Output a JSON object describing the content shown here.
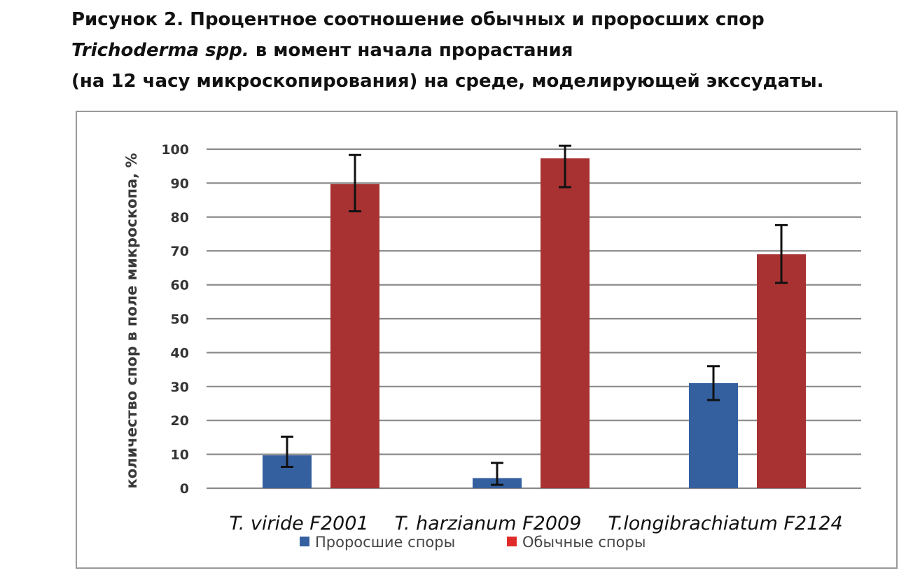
{
  "caption": {
    "line1": "Рисунок 2. Процентное соотношение обычных и проросших спор",
    "line2_italic": "Trichoderma spp.",
    "line2_rest": " в момент начала прорастания",
    "line3": "(на 12 часу микроскопирования) на среде, моделирующей экссудаты."
  },
  "chart_data": {
    "type": "bar",
    "title": "",
    "xlabel": "",
    "ylabel": "количество спор в поле микроскопа, %",
    "ylim": [
      0,
      100
    ],
    "yticks": [
      "0",
      "10",
      "20",
      "30",
      "40",
      "50",
      "60",
      "70",
      "80",
      "90",
      "100"
    ],
    "grid": true,
    "legend_position": "bottom",
    "categories": [
      "T. viride F2001",
      "T. harzianum F2009",
      "T.longibrachiatum F2124"
    ],
    "series": [
      {
        "name": "Проросшие споры",
        "color": "#3560a0",
        "values": [
          9.7,
          3.0,
          31.0
        ],
        "error_low": [
          6.3,
          1.0,
          26.0
        ],
        "error_high": [
          15.2,
          7.5,
          36.0
        ]
      },
      {
        "name": "Обычные споры",
        "color": "#a83232",
        "values": [
          89.7,
          97.3,
          69.0
        ],
        "error_low": [
          81.7,
          88.8,
          60.6
        ],
        "error_high": [
          98.3,
          101.0,
          77.6
        ]
      }
    ],
    "legend_colors": [
      "#3560a0",
      "#e02b2b"
    ]
  }
}
